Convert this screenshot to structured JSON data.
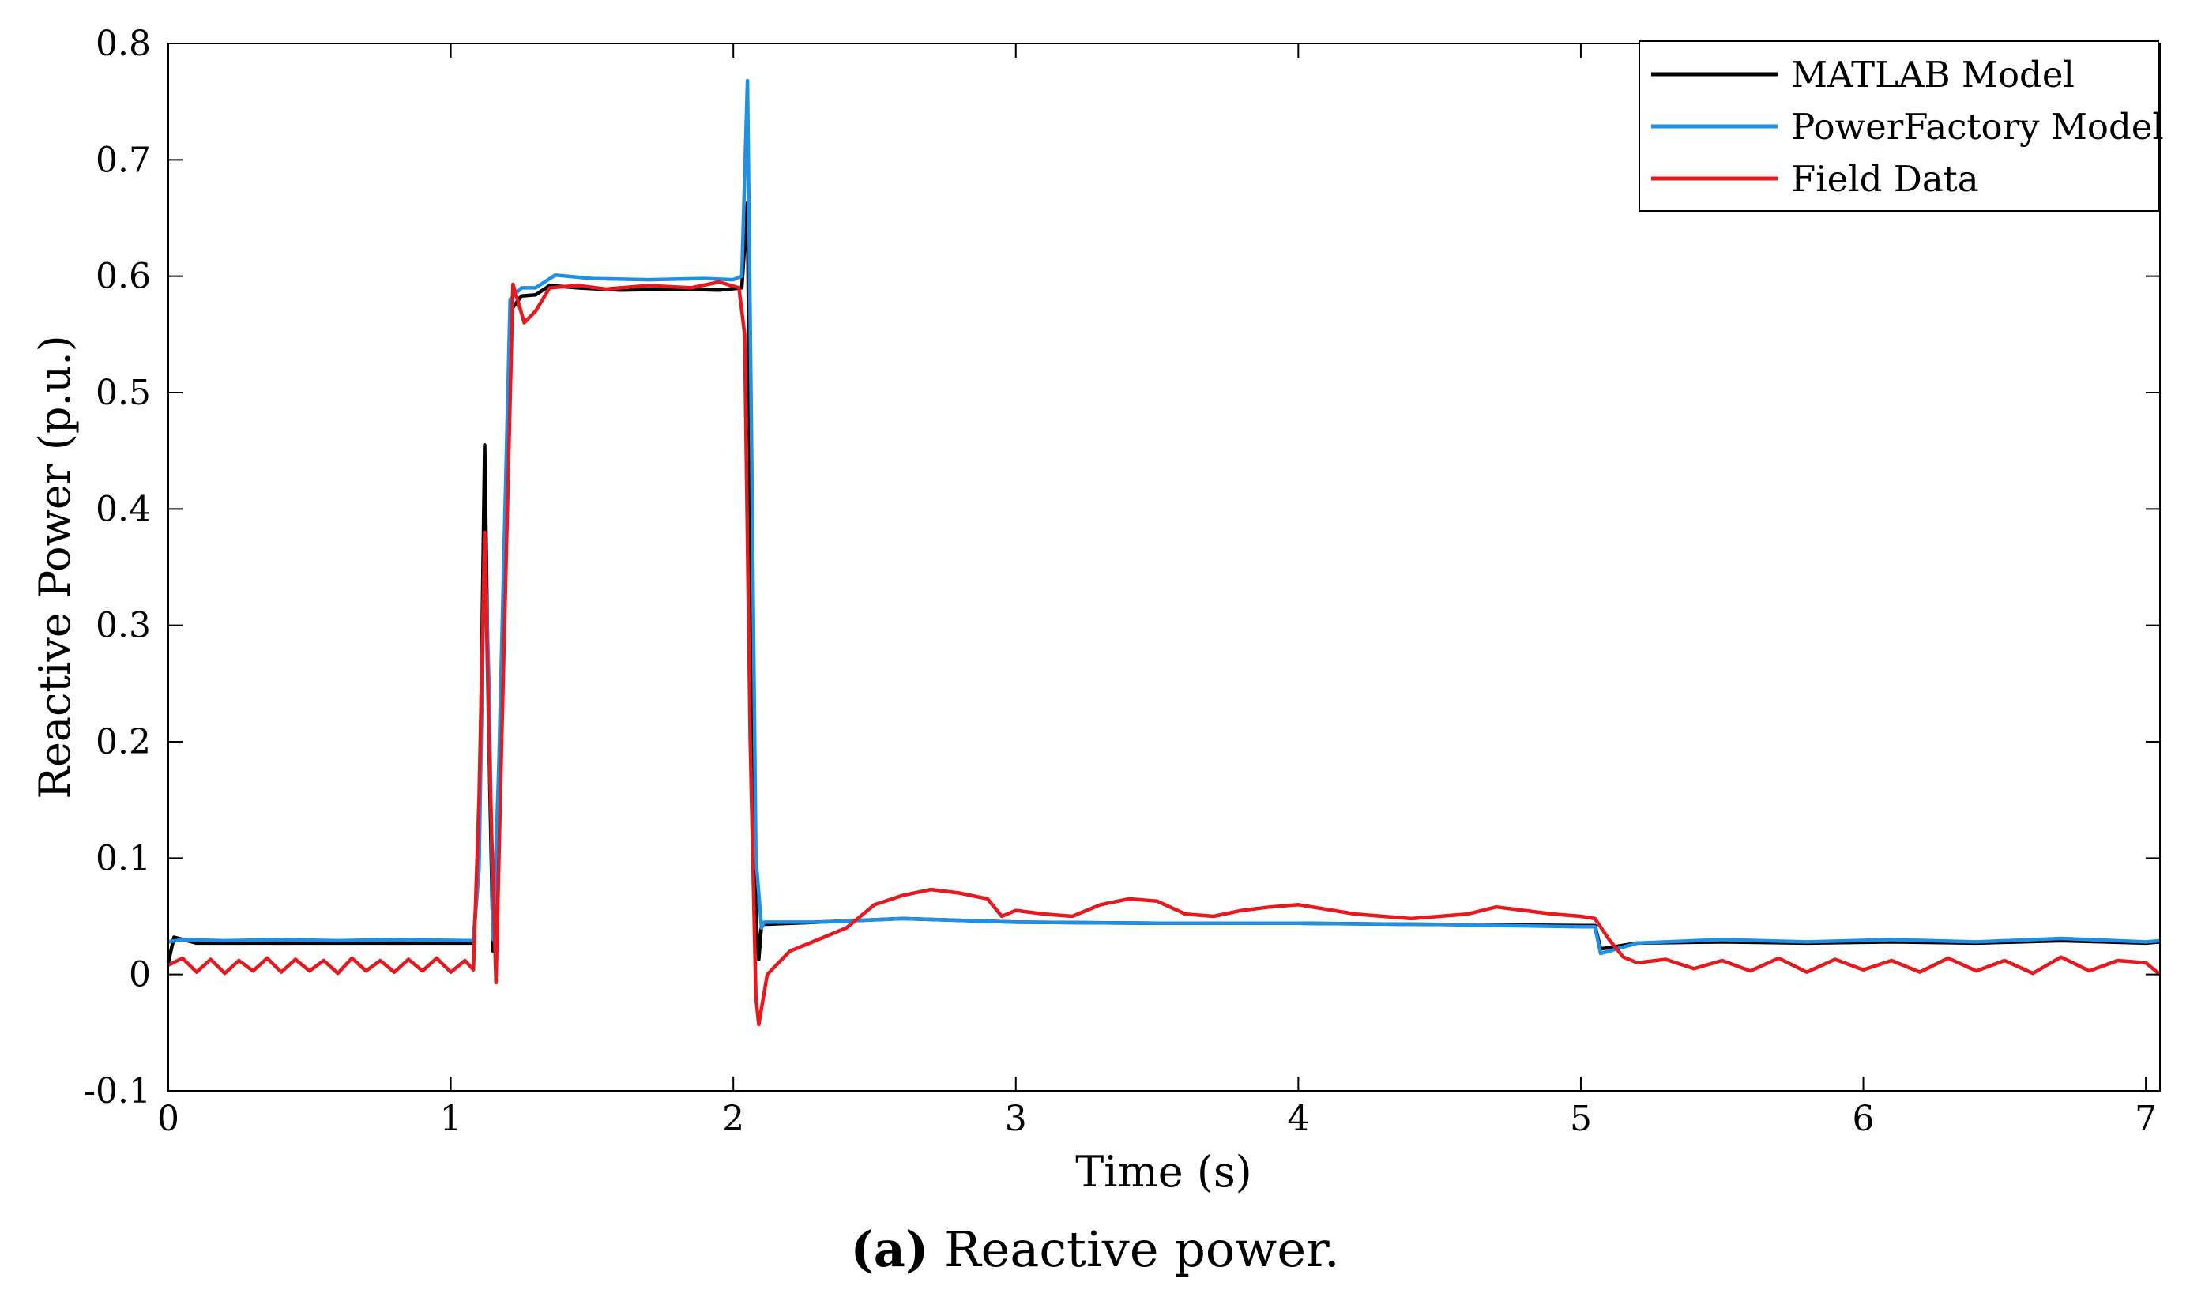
{
  "chart_data": {
    "type": "line",
    "xlabel": "Time (s)",
    "ylabel": "Reactive Power (p.u.)",
    "xlim": [
      0,
      7.05
    ],
    "ylim": [
      -0.1,
      0.8
    ],
    "xticks": [
      0,
      1,
      2,
      3,
      4,
      5,
      6,
      7
    ],
    "yticks": [
      -0.1,
      0,
      0.1,
      0.2,
      0.3,
      0.4,
      0.5,
      0.6,
      0.7,
      0.8
    ],
    "ytick_labels": [
      "-0.1",
      "0",
      "0.1",
      "0.2",
      "0.3",
      "0.4",
      "0.5",
      "0.6",
      "0.7",
      "0.8"
    ],
    "grid": false,
    "legend_position": "top-right",
    "series": [
      {
        "name": "MATLAB Model",
        "color": "#000000",
        "points": [
          [
            0,
            0.01
          ],
          [
            0.02,
            0.032
          ],
          [
            0.1,
            0.027
          ],
          [
            0.3,
            0.027
          ],
          [
            0.6,
            0.027
          ],
          [
            0.9,
            0.027
          ],
          [
            1.08,
            0.027
          ],
          [
            1.1,
            0.1
          ],
          [
            1.12,
            0.455
          ],
          [
            1.135,
            0.2
          ],
          [
            1.15,
            0.02
          ],
          [
            1.17,
            0.12
          ],
          [
            1.21,
            0.57
          ],
          [
            1.25,
            0.583
          ],
          [
            1.3,
            0.584
          ],
          [
            1.35,
            0.592
          ],
          [
            1.45,
            0.59
          ],
          [
            1.6,
            0.588
          ],
          [
            1.8,
            0.589
          ],
          [
            1.95,
            0.588
          ],
          [
            2.03,
            0.59
          ],
          [
            2.05,
            0.663
          ],
          [
            2.06,
            0.4
          ],
          [
            2.08,
            0.05
          ],
          [
            2.09,
            0.013
          ],
          [
            2.1,
            0.043
          ],
          [
            2.3,
            0.045
          ],
          [
            2.6,
            0.048
          ],
          [
            3.0,
            0.045
          ],
          [
            3.5,
            0.044
          ],
          [
            4.0,
            0.044
          ],
          [
            4.5,
            0.043
          ],
          [
            5.0,
            0.042
          ],
          [
            5.05,
            0.042
          ],
          [
            5.07,
            0.022
          ],
          [
            5.2,
            0.027
          ],
          [
            5.5,
            0.028
          ],
          [
            5.8,
            0.027
          ],
          [
            6.1,
            0.028
          ],
          [
            6.4,
            0.027
          ],
          [
            6.7,
            0.029
          ],
          [
            7.0,
            0.027
          ],
          [
            7.05,
            0.028
          ]
        ]
      },
      {
        "name": "PowerFactory Model",
        "color": "#1e90e6",
        "points": [
          [
            0,
            0.028
          ],
          [
            0.05,
            0.03
          ],
          [
            0.2,
            0.029
          ],
          [
            0.4,
            0.03
          ],
          [
            0.6,
            0.029
          ],
          [
            0.8,
            0.03
          ],
          [
            1.08,
            0.029
          ],
          [
            1.1,
            0.09
          ],
          [
            1.12,
            0.375
          ],
          [
            1.135,
            0.25
          ],
          [
            1.15,
            0.03
          ],
          [
            1.17,
            0.18
          ],
          [
            1.21,
            0.58
          ],
          [
            1.25,
            0.59
          ],
          [
            1.3,
            0.59
          ],
          [
            1.37,
            0.601
          ],
          [
            1.5,
            0.598
          ],
          [
            1.7,
            0.597
          ],
          [
            1.9,
            0.598
          ],
          [
            2.0,
            0.597
          ],
          [
            2.03,
            0.6
          ],
          [
            2.05,
            0.768
          ],
          [
            2.065,
            0.45
          ],
          [
            2.08,
            0.1
          ],
          [
            2.1,
            0.04
          ],
          [
            2.11,
            0.045
          ],
          [
            2.3,
            0.045
          ],
          [
            2.6,
            0.048
          ],
          [
            3.0,
            0.045
          ],
          [
            3.5,
            0.044
          ],
          [
            4.0,
            0.044
          ],
          [
            4.5,
            0.043
          ],
          [
            5.0,
            0.041
          ],
          [
            5.05,
            0.041
          ],
          [
            5.07,
            0.018
          ],
          [
            5.2,
            0.027
          ],
          [
            5.5,
            0.03
          ],
          [
            5.8,
            0.028
          ],
          [
            6.1,
            0.03
          ],
          [
            6.4,
            0.028
          ],
          [
            6.7,
            0.031
          ],
          [
            7.0,
            0.028
          ],
          [
            7.05,
            0.029
          ]
        ]
      },
      {
        "name": "Field Data",
        "color": "#e6191e",
        "points": [
          [
            0,
            0.008
          ],
          [
            0.05,
            0.014
          ],
          [
            0.1,
            0.002
          ],
          [
            0.15,
            0.013
          ],
          [
            0.2,
            0.001
          ],
          [
            0.25,
            0.012
          ],
          [
            0.3,
            0.003
          ],
          [
            0.35,
            0.014
          ],
          [
            0.4,
            0.002
          ],
          [
            0.45,
            0.013
          ],
          [
            0.5,
            0.003
          ],
          [
            0.55,
            0.012
          ],
          [
            0.6,
            0.001
          ],
          [
            0.65,
            0.014
          ],
          [
            0.7,
            0.003
          ],
          [
            0.75,
            0.012
          ],
          [
            0.8,
            0.002
          ],
          [
            0.85,
            0.013
          ],
          [
            0.9,
            0.003
          ],
          [
            0.95,
            0.014
          ],
          [
            1.0,
            0.002
          ],
          [
            1.05,
            0.012
          ],
          [
            1.08,
            0.004
          ],
          [
            1.1,
            0.15
          ],
          [
            1.12,
            0.38
          ],
          [
            1.135,
            0.2
          ],
          [
            1.16,
            -0.007
          ],
          [
            1.18,
            0.2
          ],
          [
            1.22,
            0.593
          ],
          [
            1.26,
            0.56
          ],
          [
            1.3,
            0.57
          ],
          [
            1.35,
            0.59
          ],
          [
            1.45,
            0.592
          ],
          [
            1.55,
            0.589
          ],
          [
            1.7,
            0.592
          ],
          [
            1.85,
            0.59
          ],
          [
            1.95,
            0.595
          ],
          [
            2.02,
            0.59
          ],
          [
            2.04,
            0.55
          ],
          [
            2.06,
            0.2
          ],
          [
            2.08,
            -0.02
          ],
          [
            2.09,
            -0.043
          ],
          [
            2.12,
            0.0
          ],
          [
            2.2,
            0.02
          ],
          [
            2.3,
            0.03
          ],
          [
            2.4,
            0.04
          ],
          [
            2.5,
            0.06
          ],
          [
            2.6,
            0.068
          ],
          [
            2.7,
            0.073
          ],
          [
            2.8,
            0.07
          ],
          [
            2.9,
            0.065
          ],
          [
            2.95,
            0.05
          ],
          [
            3.0,
            0.055
          ],
          [
            3.1,
            0.052
          ],
          [
            3.2,
            0.05
          ],
          [
            3.3,
            0.06
          ],
          [
            3.4,
            0.065
          ],
          [
            3.5,
            0.063
          ],
          [
            3.6,
            0.052
          ],
          [
            3.7,
            0.05
          ],
          [
            3.8,
            0.055
          ],
          [
            3.9,
            0.058
          ],
          [
            4.0,
            0.06
          ],
          [
            4.1,
            0.056
          ],
          [
            4.2,
            0.052
          ],
          [
            4.3,
            0.05
          ],
          [
            4.4,
            0.048
          ],
          [
            4.5,
            0.05
          ],
          [
            4.6,
            0.052
          ],
          [
            4.7,
            0.058
          ],
          [
            4.8,
            0.055
          ],
          [
            4.9,
            0.052
          ],
          [
            5.0,
            0.05
          ],
          [
            5.05,
            0.048
          ],
          [
            5.1,
            0.03
          ],
          [
            5.15,
            0.015
          ],
          [
            5.2,
            0.01
          ],
          [
            5.3,
            0.013
          ],
          [
            5.4,
            0.005
          ],
          [
            5.5,
            0.012
          ],
          [
            5.6,
            0.003
          ],
          [
            5.7,
            0.014
          ],
          [
            5.8,
            0.002
          ],
          [
            5.9,
            0.013
          ],
          [
            6.0,
            0.004
          ],
          [
            6.1,
            0.012
          ],
          [
            6.2,
            0.002
          ],
          [
            6.3,
            0.014
          ],
          [
            6.4,
            0.003
          ],
          [
            6.5,
            0.012
          ],
          [
            6.6,
            0.001
          ],
          [
            6.7,
            0.015
          ],
          [
            6.8,
            0.003
          ],
          [
            6.9,
            0.012
          ],
          [
            7.0,
            0.01
          ],
          [
            7.05,
            0.0
          ]
        ]
      }
    ]
  },
  "caption": {
    "letter": "(a)",
    "text": "Reactive power."
  }
}
